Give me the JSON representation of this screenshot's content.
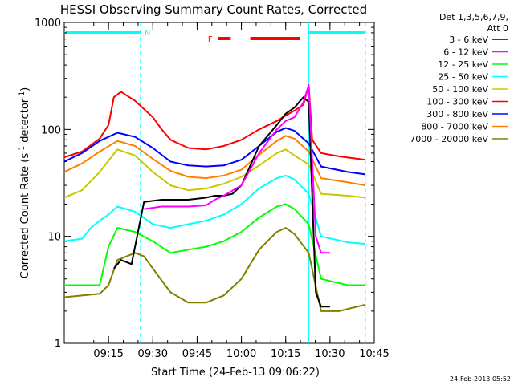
{
  "chart_data": {
    "type": "line",
    "title": "HESSI Observing Summary Count Rates, Corrected",
    "xlabel": "Start Time (24-Feb-13 09:06:22)",
    "ylabel_main": "Corrected Count Rate (s",
    "ylabel_sup1": "-1",
    "ylabel_mid": " detector",
    "ylabel_sup2": "-1",
    "ylabel_end": ")",
    "y_scale": "log",
    "ylim": [
      1,
      1000
    ],
    "x_range_minutes": [
      9.0,
      10.75
    ],
    "y_ticks": [
      {
        "value": 1,
        "label": "1"
      },
      {
        "value": 10,
        "label": "10"
      },
      {
        "value": 100,
        "label": "100"
      },
      {
        "value": 1000,
        "label": "1000"
      }
    ],
    "x_ticks": [
      {
        "value": 9.25,
        "label": "09:15"
      },
      {
        "value": 9.5,
        "label": "09:30"
      },
      {
        "value": 9.75,
        "label": "09:45"
      },
      {
        "value": 10.0,
        "label": "10:00"
      },
      {
        "value": 10.25,
        "label": "10:15"
      },
      {
        "value": 10.5,
        "label": "10:30"
      },
      {
        "value": 10.75,
        "label": "10:45"
      }
    ],
    "legend": {
      "placement": "right",
      "header1": "Det 1,3,5,6,7,9,",
      "header2": "Att 0",
      "entries": [
        {
          "label": "3 - 6 keV",
          "color": "#000000"
        },
        {
          "label": "6 - 12 keV",
          "color": "#ff00ff"
        },
        {
          "label": "12 - 25 keV",
          "color": "#00ff00"
        },
        {
          "label": "25 - 50 keV",
          "color": "#00ffff"
        },
        {
          "label": "50 - 100 keV",
          "color": "#c8c800"
        },
        {
          "label": "100 - 300 keV",
          "color": "#ff0000"
        },
        {
          "label": "300 - 800 keV",
          "color": "#0000ff"
        },
        {
          "label": "800 - 7000 keV",
          "color": "#ff8000"
        },
        {
          "label": "7000 - 20000 keV",
          "color": "#808000"
        }
      ]
    },
    "annotations": {
      "night_label": "N",
      "flare_label": "F",
      "night_color": "#00ffff",
      "flare_color": "#ff0000",
      "night_intervals": [
        [
          9.0,
          9.43
        ],
        [
          10.38,
          10.7
        ]
      ],
      "flare_intervals": [
        [
          9.87,
          9.94
        ],
        [
          10.05,
          10.33
        ]
      ],
      "vertical_lines": [
        {
          "x": 9.43,
          "style": "dashed"
        },
        {
          "x": 10.38,
          "style": "solid"
        },
        {
          "x": 10.7,
          "style": "dashed"
        }
      ]
    },
    "series": [
      {
        "name": "100 - 300 keV",
        "color": "#ff0000",
        "points": [
          [
            9.0,
            55
          ],
          [
            9.1,
            62
          ],
          [
            9.2,
            82
          ],
          [
            9.25,
            110
          ],
          [
            9.28,
            200
          ],
          [
            9.32,
            225
          ],
          [
            9.4,
            185
          ],
          [
            9.5,
            130
          ],
          [
            9.55,
            100
          ],
          [
            9.6,
            80
          ],
          [
            9.7,
            67
          ],
          [
            9.8,
            65
          ],
          [
            9.9,
            70
          ],
          [
            10.0,
            80
          ],
          [
            10.1,
            100
          ],
          [
            10.2,
            120
          ],
          [
            10.25,
            135
          ],
          [
            10.3,
            150
          ],
          [
            10.35,
            170
          ],
          [
            10.38,
            260
          ],
          [
            10.4,
            80
          ],
          [
            10.45,
            60
          ],
          [
            10.55,
            56
          ],
          [
            10.7,
            52
          ]
        ]
      },
      {
        "name": "300 - 800 keV",
        "color": "#0000ff",
        "points": [
          [
            9.0,
            50
          ],
          [
            9.1,
            60
          ],
          [
            9.2,
            78
          ],
          [
            9.3,
            93
          ],
          [
            9.4,
            85
          ],
          [
            9.5,
            67
          ],
          [
            9.6,
            50
          ],
          [
            9.7,
            46
          ],
          [
            9.8,
            45
          ],
          [
            9.9,
            46
          ],
          [
            10.0,
            52
          ],
          [
            10.1,
            70
          ],
          [
            10.2,
            95
          ],
          [
            10.25,
            103
          ],
          [
            10.3,
            97
          ],
          [
            10.38,
            74
          ],
          [
            10.45,
            45
          ],
          [
            10.6,
            40
          ],
          [
            10.7,
            38
          ]
        ]
      },
      {
        "name": "800 - 7000 keV",
        "color": "#ff8000",
        "points": [
          [
            9.0,
            40
          ],
          [
            9.1,
            48
          ],
          [
            9.2,
            62
          ],
          [
            9.3,
            78
          ],
          [
            9.4,
            70
          ],
          [
            9.5,
            53
          ],
          [
            9.6,
            41
          ],
          [
            9.7,
            36
          ],
          [
            9.8,
            35
          ],
          [
            9.9,
            37
          ],
          [
            10.0,
            42
          ],
          [
            10.1,
            58
          ],
          [
            10.2,
            78
          ],
          [
            10.25,
            87
          ],
          [
            10.3,
            82
          ],
          [
            10.38,
            62
          ],
          [
            10.45,
            35
          ],
          [
            10.6,
            32
          ],
          [
            10.7,
            30
          ]
        ]
      },
      {
        "name": "50 - 100 keV",
        "color": "#c8c800",
        "points": [
          [
            9.0,
            23
          ],
          [
            9.1,
            27
          ],
          [
            9.2,
            40
          ],
          [
            9.3,
            65
          ],
          [
            9.4,
            57
          ],
          [
            9.5,
            40
          ],
          [
            9.6,
            30
          ],
          [
            9.7,
            27
          ],
          [
            9.8,
            28
          ],
          [
            9.9,
            31
          ],
          [
            10.0,
            36
          ],
          [
            10.1,
            46
          ],
          [
            10.2,
            60
          ],
          [
            10.25,
            65
          ],
          [
            10.3,
            57
          ],
          [
            10.38,
            47
          ],
          [
            10.45,
            25
          ],
          [
            10.6,
            24
          ],
          [
            10.7,
            23
          ]
        ]
      },
      {
        "name": "25 - 50 keV",
        "color": "#00ffff",
        "points": [
          [
            9.0,
            9
          ],
          [
            9.1,
            9.5
          ],
          [
            9.15,
            12
          ],
          [
            9.2,
            14
          ],
          [
            9.25,
            16
          ],
          [
            9.3,
            19
          ],
          [
            9.4,
            17
          ],
          [
            9.5,
            13
          ],
          [
            9.6,
            12
          ],
          [
            9.7,
            13
          ],
          [
            9.8,
            14
          ],
          [
            9.9,
            16
          ],
          [
            10.0,
            20
          ],
          [
            10.1,
            28
          ],
          [
            10.2,
            35
          ],
          [
            10.25,
            37
          ],
          [
            10.3,
            34
          ],
          [
            10.38,
            25
          ],
          [
            10.45,
            10
          ],
          [
            10.6,
            8.8
          ],
          [
            10.7,
            8.5
          ]
        ]
      },
      {
        "name": "12 - 25 keV",
        "color": "#00ff00",
        "points": [
          [
            9.0,
            3.5
          ],
          [
            9.1,
            3.5
          ],
          [
            9.2,
            3.5
          ],
          [
            9.25,
            8
          ],
          [
            9.3,
            12
          ],
          [
            9.4,
            11
          ],
          [
            9.5,
            9
          ],
          [
            9.6,
            7
          ],
          [
            9.7,
            7.5
          ],
          [
            9.8,
            8
          ],
          [
            9.9,
            9
          ],
          [
            10.0,
            11
          ],
          [
            10.1,
            15
          ],
          [
            10.2,
            19
          ],
          [
            10.25,
            20
          ],
          [
            10.3,
            18
          ],
          [
            10.38,
            13
          ],
          [
            10.45,
            4
          ],
          [
            10.6,
            3.5
          ],
          [
            10.7,
            3.5
          ]
        ]
      },
      {
        "name": "7000 - 20000 keV",
        "color": "#808000",
        "points": [
          [
            9.0,
            2.7
          ],
          [
            9.1,
            2.8
          ],
          [
            9.2,
            2.9
          ],
          [
            9.25,
            3.5
          ],
          [
            9.3,
            6
          ],
          [
            9.4,
            7
          ],
          [
            9.45,
            6.5
          ],
          [
            9.5,
            5
          ],
          [
            9.6,
            3
          ],
          [
            9.7,
            2.4
          ],
          [
            9.8,
            2.4
          ],
          [
            9.9,
            2.8
          ],
          [
            10.0,
            4
          ],
          [
            10.1,
            7.5
          ],
          [
            10.2,
            11
          ],
          [
            10.25,
            12
          ],
          [
            10.3,
            10.5
          ],
          [
            10.38,
            7
          ],
          [
            10.45,
            2
          ],
          [
            10.55,
            2
          ],
          [
            10.7,
            2.3
          ]
        ]
      },
      {
        "name": "3 - 6 keV",
        "color": "#000000",
        "points": [
          [
            9.28,
            5
          ],
          [
            9.32,
            6
          ],
          [
            9.38,
            5.5
          ],
          [
            9.45,
            21
          ],
          [
            9.55,
            22
          ],
          [
            9.7,
            22
          ],
          [
            9.8,
            23
          ],
          [
            9.85,
            24
          ],
          [
            9.9,
            24
          ],
          [
            9.95,
            25
          ],
          [
            10.0,
            30
          ],
          [
            10.1,
            70
          ],
          [
            10.2,
            110
          ],
          [
            10.25,
            140
          ],
          [
            10.3,
            160
          ],
          [
            10.35,
            200
          ],
          [
            10.38,
            180
          ],
          [
            10.42,
            3
          ],
          [
            10.45,
            2.2
          ],
          [
            10.5,
            2.2
          ]
        ]
      },
      {
        "name": "6 - 12 keV",
        "color": "#ff00ff",
        "points": [
          [
            9.45,
            18
          ],
          [
            9.55,
            19
          ],
          [
            9.7,
            19
          ],
          [
            9.8,
            19.5
          ],
          [
            9.85,
            22
          ],
          [
            9.9,
            24
          ],
          [
            10.0,
            30
          ],
          [
            10.1,
            60
          ],
          [
            10.2,
            100
          ],
          [
            10.25,
            120
          ],
          [
            10.3,
            130
          ],
          [
            10.35,
            180
          ],
          [
            10.38,
            260
          ],
          [
            10.42,
            10
          ],
          [
            10.45,
            7
          ],
          [
            10.5,
            7
          ]
        ]
      }
    ]
  },
  "footer": {
    "timestamp": "24-Feb-2013 05:52"
  }
}
